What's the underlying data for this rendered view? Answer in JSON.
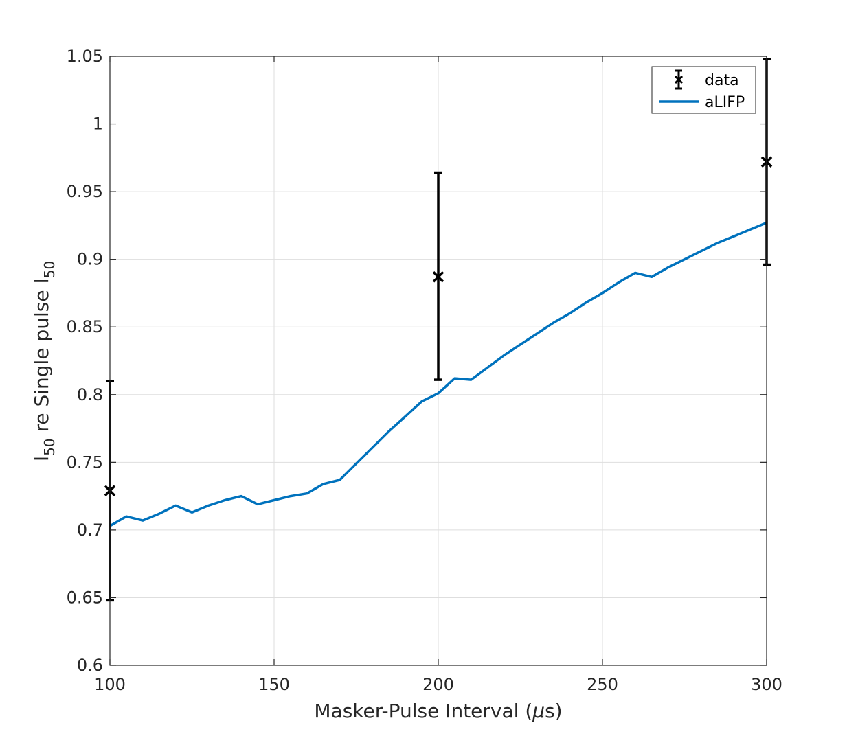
{
  "chart_data": {
    "type": "line",
    "xlabel": "Masker-Pulse Interval (μs)",
    "ylabel": "I50 re Single pulse I50",
    "xlim": [
      100,
      300
    ],
    "ylim": [
      0.6,
      1.05
    ],
    "xticks": [
      "100",
      "150",
      "200",
      "250",
      "300"
    ],
    "yticks": [
      "0.6",
      "0.65",
      "0.7",
      "0.75",
      "0.8",
      "0.85",
      "0.9",
      "0.95",
      "1",
      "1.05"
    ],
    "grid": true,
    "legend_position": "top-right",
    "series": [
      {
        "name": "data",
        "kind": "errorbar",
        "color": "#000000",
        "marker": "x",
        "x": [
          100,
          200,
          300
        ],
        "y": [
          0.729,
          0.887,
          0.972
        ],
        "lower": [
          0.648,
          0.811,
          0.896
        ],
        "upper": [
          0.81,
          0.964,
          1.048
        ]
      },
      {
        "name": "aLIFP",
        "kind": "line",
        "color": "#0072BD",
        "x": [
          100,
          105,
          110,
          115,
          120,
          125,
          130,
          135,
          140,
          145,
          150,
          155,
          160,
          165,
          170,
          175,
          180,
          185,
          190,
          195,
          200,
          205,
          210,
          215,
          220,
          225,
          230,
          235,
          240,
          245,
          250,
          255,
          260,
          265,
          270,
          275,
          280,
          285,
          290,
          295,
          300
        ],
        "y": [
          0.703,
          0.71,
          0.707,
          0.712,
          0.718,
          0.713,
          0.718,
          0.722,
          0.725,
          0.719,
          0.722,
          0.725,
          0.727,
          0.734,
          0.737,
          0.749,
          0.761,
          0.773,
          0.784,
          0.795,
          0.801,
          0.812,
          0.811,
          0.82,
          0.829,
          0.837,
          0.845,
          0.853,
          0.86,
          0.868,
          0.875,
          0.883,
          0.89,
          0.887,
          0.894,
          0.9,
          0.906,
          0.912,
          0.917,
          0.922,
          0.927
        ]
      }
    ]
  }
}
